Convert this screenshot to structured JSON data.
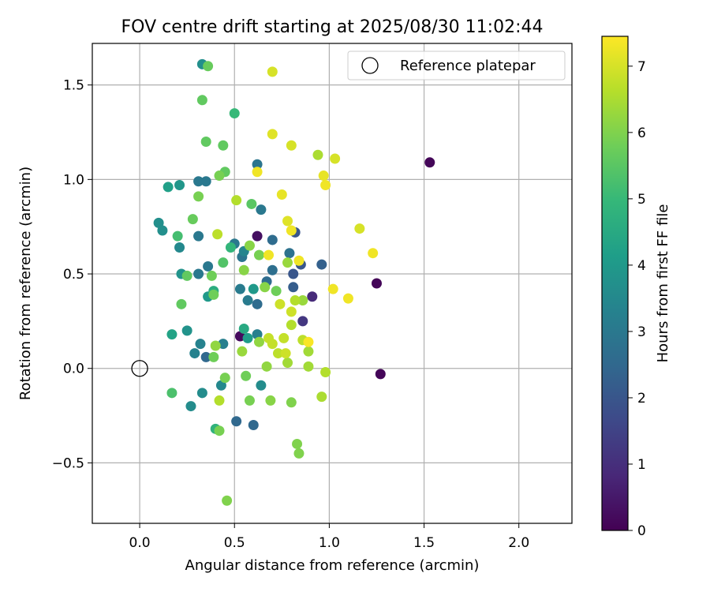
{
  "chart_data": {
    "type": "scatter",
    "title": "FOV centre drift starting at 2025/08/30 11:02:44",
    "xlabel": "Angular distance from reference (arcmin)",
    "ylabel": "Rotation from reference (arcmin)",
    "xlim": [
      -0.25,
      2.28
    ],
    "ylim": [
      -0.82,
      1.72
    ],
    "xticks": [
      0.0,
      0.5,
      1.0,
      1.5,
      2.0
    ],
    "xtick_labels": [
      "0.0",
      "0.5",
      "1.0",
      "1.5",
      "2.0"
    ],
    "yticks": [
      -0.5,
      0.0,
      0.5,
      1.0,
      1.5
    ],
    "ytick_labels": [
      "−0.5",
      "0.0",
      "0.5",
      "1.0",
      "1.5"
    ],
    "grid": true,
    "legend": {
      "placement": "top-right",
      "entries": [
        "Reference platepar"
      ]
    },
    "reference_point": {
      "x": 0.0,
      "y": 0.0
    },
    "colorbar": {
      "label": "Hours from first FF file",
      "colormap": "viridis",
      "range": [
        0,
        7.45
      ],
      "ticks": [
        0,
        1,
        2,
        3,
        4,
        5,
        6,
        7
      ],
      "tick_labels": [
        "0",
        "1",
        "2",
        "3",
        "4",
        "5",
        "6",
        "7"
      ],
      "stops": [
        "#440154",
        "#482878",
        "#3e4989",
        "#31688e",
        "#26828e",
        "#1f9e89",
        "#35b779",
        "#6ece58",
        "#b5de2b",
        "#fde725"
      ]
    },
    "points": [
      {
        "x": 1.53,
        "y": 1.09,
        "c": 0.1
      },
      {
        "x": 1.25,
        "y": 0.45,
        "c": 0.1
      },
      {
        "x": 1.27,
        "y": -0.03,
        "c": 0.1
      },
      {
        "x": 0.62,
        "y": 0.7,
        "c": 0.3
      },
      {
        "x": 0.53,
        "y": 0.17,
        "c": 0.2
      },
      {
        "x": 0.91,
        "y": 0.38,
        "c": 0.9
      },
      {
        "x": 0.86,
        "y": 0.25,
        "c": 1.2
      },
      {
        "x": 0.85,
        "y": 0.55,
        "c": 2.0
      },
      {
        "x": 0.82,
        "y": 0.72,
        "c": 2.0
      },
      {
        "x": 0.81,
        "y": 0.5,
        "c": 2.0
      },
      {
        "x": 0.81,
        "y": 0.43,
        "c": 2.2
      },
      {
        "x": 0.96,
        "y": 0.55,
        "c": 2.3
      },
      {
        "x": 0.51,
        "y": -0.28,
        "c": 2.5
      },
      {
        "x": 0.6,
        "y": -0.3,
        "c": 2.5
      },
      {
        "x": 0.35,
        "y": 0.06,
        "c": 2.5
      },
      {
        "x": 0.62,
        "y": 0.34,
        "c": 2.6
      },
      {
        "x": 0.7,
        "y": 0.68,
        "c": 2.6
      },
      {
        "x": 0.67,
        "y": 0.46,
        "c": 2.6
      },
      {
        "x": 0.7,
        "y": 0.52,
        "c": 2.7
      },
      {
        "x": 0.79,
        "y": 0.61,
        "c": 2.8
      },
      {
        "x": 0.54,
        "y": 0.59,
        "c": 2.9
      },
      {
        "x": 0.62,
        "y": 1.08,
        "c": 2.9
      },
      {
        "x": 0.64,
        "y": 0.84,
        "c": 3.0
      },
      {
        "x": 0.5,
        "y": 0.66,
        "c": 3.0
      },
      {
        "x": 0.31,
        "y": 0.99,
        "c": 3.0
      },
      {
        "x": 0.35,
        "y": 0.99,
        "c": 3.0
      },
      {
        "x": 0.31,
        "y": 0.7,
        "c": 3.0
      },
      {
        "x": 0.31,
        "y": 0.5,
        "c": 3.0
      },
      {
        "x": 0.36,
        "y": 0.54,
        "c": 3.0
      },
      {
        "x": 0.57,
        "y": 0.36,
        "c": 3.1
      },
      {
        "x": 0.53,
        "y": 0.42,
        "c": 3.1
      },
      {
        "x": 0.44,
        "y": 0.13,
        "c": 3.2
      },
      {
        "x": 0.62,
        "y": 0.18,
        "c": 3.2
      },
      {
        "x": 0.32,
        "y": 0.13,
        "c": 3.3
      },
      {
        "x": 0.29,
        "y": 0.08,
        "c": 3.3
      },
      {
        "x": 0.55,
        "y": 0.62,
        "c": 3.4
      },
      {
        "x": 0.21,
        "y": 0.64,
        "c": 3.5
      },
      {
        "x": 0.43,
        "y": -0.09,
        "c": 3.5
      },
      {
        "x": 0.64,
        "y": -0.09,
        "c": 3.6
      },
      {
        "x": 0.33,
        "y": -0.13,
        "c": 3.6
      },
      {
        "x": 0.27,
        "y": -0.2,
        "c": 3.6
      },
      {
        "x": 0.33,
        "y": 1.61,
        "c": 3.7
      },
      {
        "x": 0.1,
        "y": 0.77,
        "c": 3.7
      },
      {
        "x": 0.12,
        "y": 0.73,
        "c": 3.7
      },
      {
        "x": 0.22,
        "y": 0.5,
        "c": 3.8
      },
      {
        "x": 0.25,
        "y": 0.2,
        "c": 3.8
      },
      {
        "x": 0.21,
        "y": 0.97,
        "c": 3.9
      },
      {
        "x": 0.6,
        "y": 0.42,
        "c": 4.0
      },
      {
        "x": 0.36,
        "y": 0.38,
        "c": 4.0
      },
      {
        "x": 0.57,
        "y": 0.16,
        "c": 4.1
      },
      {
        "x": 0.15,
        "y": 0.96,
        "c": 4.2
      },
      {
        "x": 0.17,
        "y": 0.18,
        "c": 4.3
      },
      {
        "x": 0.55,
        "y": 0.21,
        "c": 4.5
      },
      {
        "x": 0.39,
        "y": 0.41,
        "c": 4.6
      },
      {
        "x": 0.4,
        "y": -0.32,
        "c": 4.8
      },
      {
        "x": 0.48,
        "y": 0.64,
        "c": 4.9
      },
      {
        "x": 0.5,
        "y": 1.35,
        "c": 5.0
      },
      {
        "x": 0.2,
        "y": 0.7,
        "c": 5.2
      },
      {
        "x": 0.17,
        "y": -0.13,
        "c": 5.3
      },
      {
        "x": 0.44,
        "y": 0.56,
        "c": 5.4
      },
      {
        "x": 0.59,
        "y": 0.87,
        "c": 5.5
      },
      {
        "x": 0.33,
        "y": 1.42,
        "c": 5.6
      },
      {
        "x": 0.35,
        "y": 1.2,
        "c": 5.6
      },
      {
        "x": 0.44,
        "y": 1.18,
        "c": 5.6
      },
      {
        "x": 0.45,
        "y": 1.04,
        "c": 5.6
      },
      {
        "x": 0.22,
        "y": 0.34,
        "c": 5.6
      },
      {
        "x": 0.25,
        "y": 0.49,
        "c": 5.6
      },
      {
        "x": 0.36,
        "y": 1.6,
        "c": 5.7
      },
      {
        "x": 0.28,
        "y": 0.79,
        "c": 5.7
      },
      {
        "x": 0.72,
        "y": 0.41,
        "c": 5.8
      },
      {
        "x": 0.38,
        "y": 0.49,
        "c": 5.8
      },
      {
        "x": 0.39,
        "y": 0.39,
        "c": 5.8
      },
      {
        "x": 0.39,
        "y": 0.06,
        "c": 5.8
      },
      {
        "x": 0.56,
        "y": -0.04,
        "c": 5.8
      },
      {
        "x": 0.42,
        "y": 1.02,
        "c": 5.9
      },
      {
        "x": 0.31,
        "y": 0.91,
        "c": 5.9
      },
      {
        "x": 0.42,
        "y": -0.33,
        "c": 5.9
      },
      {
        "x": 0.63,
        "y": 0.6,
        "c": 5.9
      },
      {
        "x": 0.45,
        "y": -0.05,
        "c": 5.9
      },
      {
        "x": 0.58,
        "y": -0.17,
        "c": 5.9
      },
      {
        "x": 0.46,
        "y": -0.7,
        "c": 6.0
      },
      {
        "x": 0.83,
        "y": -0.4,
        "c": 6.0
      },
      {
        "x": 0.84,
        "y": -0.45,
        "c": 6.0
      },
      {
        "x": 0.8,
        "y": -0.18,
        "c": 6.0
      },
      {
        "x": 0.69,
        "y": -0.17,
        "c": 6.1
      },
      {
        "x": 0.55,
        "y": 0.52,
        "c": 6.1
      },
      {
        "x": 0.58,
        "y": 0.65,
        "c": 6.1
      },
      {
        "x": 0.66,
        "y": 0.43,
        "c": 6.1
      },
      {
        "x": 0.4,
        "y": 0.12,
        "c": 6.2
      },
      {
        "x": 0.63,
        "y": 0.14,
        "c": 6.2
      },
      {
        "x": 0.67,
        "y": 0.01,
        "c": 6.2
      },
      {
        "x": 0.54,
        "y": 0.09,
        "c": 6.3
      },
      {
        "x": 0.78,
        "y": 0.56,
        "c": 6.3
      },
      {
        "x": 0.86,
        "y": 0.36,
        "c": 6.3
      },
      {
        "x": 0.78,
        "y": 0.03,
        "c": 6.4
      },
      {
        "x": 0.89,
        "y": 0.09,
        "c": 6.4
      },
      {
        "x": 0.89,
        "y": 0.01,
        "c": 6.4
      },
      {
        "x": 0.94,
        "y": 1.13,
        "c": 6.5
      },
      {
        "x": 0.96,
        "y": -0.15,
        "c": 6.5
      },
      {
        "x": 0.98,
        "y": -0.02,
        "c": 6.6
      },
      {
        "x": 0.82,
        "y": 0.36,
        "c": 6.6
      },
      {
        "x": 0.8,
        "y": 0.23,
        "c": 6.6
      },
      {
        "x": 0.51,
        "y": 0.89,
        "c": 6.6
      },
      {
        "x": 0.42,
        "y": -0.17,
        "c": 6.6
      },
      {
        "x": 0.41,
        "y": 0.71,
        "c": 6.7
      },
      {
        "x": 0.86,
        "y": 0.15,
        "c": 6.7
      },
      {
        "x": 0.73,
        "y": 0.08,
        "c": 6.7
      },
      {
        "x": 0.68,
        "y": 0.16,
        "c": 6.8
      },
      {
        "x": 0.7,
        "y": 0.13,
        "c": 6.8
      },
      {
        "x": 0.76,
        "y": 0.16,
        "c": 6.8
      },
      {
        "x": 0.77,
        "y": 0.08,
        "c": 6.9
      },
      {
        "x": 0.8,
        "y": 0.3,
        "c": 6.9
      },
      {
        "x": 0.74,
        "y": 0.34,
        "c": 6.9
      },
      {
        "x": 0.8,
        "y": 1.18,
        "c": 7.0
      },
      {
        "x": 0.7,
        "y": 1.57,
        "c": 7.0
      },
      {
        "x": 1.03,
        "y": 1.11,
        "c": 7.0
      },
      {
        "x": 1.16,
        "y": 0.74,
        "c": 7.0
      },
      {
        "x": 0.78,
        "y": 0.78,
        "c": 7.1
      },
      {
        "x": 0.7,
        "y": 1.24,
        "c": 7.1
      },
      {
        "x": 0.75,
        "y": 0.92,
        "c": 7.2
      },
      {
        "x": 0.97,
        "y": 1.02,
        "c": 7.2
      },
      {
        "x": 0.98,
        "y": 0.97,
        "c": 7.3
      },
      {
        "x": 0.62,
        "y": 1.04,
        "c": 7.3
      },
      {
        "x": 0.8,
        "y": 0.73,
        "c": 7.3
      },
      {
        "x": 0.84,
        "y": 0.57,
        "c": 7.3
      },
      {
        "x": 0.68,
        "y": 0.6,
        "c": 7.3
      },
      {
        "x": 1.23,
        "y": 0.61,
        "c": 7.3
      },
      {
        "x": 1.02,
        "y": 0.42,
        "c": 7.3
      },
      {
        "x": 1.1,
        "y": 0.37,
        "c": 7.3
      },
      {
        "x": 0.89,
        "y": 0.14,
        "c": 7.4
      }
    ]
  }
}
